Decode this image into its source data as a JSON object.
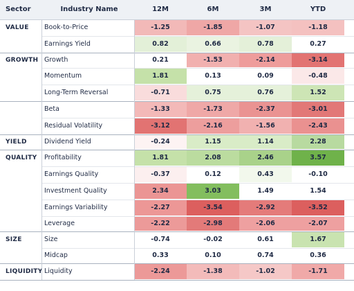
{
  "headers": {
    "sector": "Sector",
    "industry": "Industry Name",
    "cols": [
      "12M",
      "6M",
      "3M",
      "YTD"
    ]
  },
  "rows": [
    {
      "sector": "VALUE",
      "name": "Book-to-Price",
      "values": [
        "-1.25",
        "-1.85",
        "-1.07",
        "-1.18"
      ],
      "colors": [
        "#f2b9b8",
        "#efa7a6",
        "#f4c4c3",
        "#f4c1c0"
      ]
    },
    {
      "sector": "",
      "name": "Earnings Yield",
      "values": [
        "0.82",
        "0.66",
        "0.78",
        "0.27"
      ],
      "colors": [
        "#e3f0d8",
        "#eaf3e1",
        "#e4f0d9",
        "#ffffff"
      ]
    },
    {
      "sector": "GROWTH",
      "name": "Growth",
      "values": [
        "0.21",
        "-1.53",
        "-2.14",
        "-3.14"
      ],
      "colors": [
        "#ffffff",
        "#f1b0af",
        "#ee9c9b",
        "#e27372"
      ]
    },
    {
      "sector": "",
      "name": "Momentum",
      "values": [
        "1.81",
        "0.13",
        "0.09",
        "-0.48"
      ],
      "colors": [
        "#c5e1a9",
        "#ffffff",
        "#ffffff",
        "#fbe8e8"
      ]
    },
    {
      "sector": "",
      "name": "Long-Term Reversal",
      "values": [
        "-0.71",
        "0.75",
        "0.76",
        "1.52"
      ],
      "colors": [
        "#f9dcdc",
        "#e5f1da",
        "#e5f1da",
        "#cde5b5"
      ]
    },
    {
      "sector": "",
      "name": "Beta",
      "values": [
        "-1.33",
        "-1.73",
        "-2.37",
        "-3.01"
      ],
      "colors": [
        "#f3b9b8",
        "#efa8a7",
        "#ea9392",
        "#e27877"
      ]
    },
    {
      "sector": "",
      "name": "Residual Volatility",
      "values": [
        "-3.12",
        "-2.16",
        "-1.56",
        "-2.43"
      ],
      "colors": [
        "#e27372",
        "#ed9e9d",
        "#f1b1b0",
        "#ea9190"
      ]
    },
    {
      "sector": "YIELD",
      "name": "Dividend Yield",
      "values": [
        "-0.24",
        "1.15",
        "1.14",
        "2.28"
      ],
      "colors": [
        "#fdf3f3",
        "#d9ecc7",
        "#d9ecc7",
        "#b8daa0"
      ]
    },
    {
      "sector": "QUALITY",
      "name": "Profitability",
      "values": [
        "1.81",
        "2.08",
        "2.46",
        "3.57"
      ],
      "colors": [
        "#c5e1a9",
        "#bbdc9f",
        "#a9d28a",
        "#6fb24a"
      ]
    },
    {
      "sector": "",
      "name": "Earnings Quality",
      "values": [
        "-0.37",
        "0.12",
        "0.43",
        "-0.10"
      ],
      "colors": [
        "#fcefef",
        "#ffffff",
        "#f2f8ec",
        "#ffffff"
      ]
    },
    {
      "sector": "",
      "name": "Investment Quality",
      "values": [
        "2.34",
        "3.03",
        "1.49",
        "1.54"
      ],
      "colors": [
        "#eb9594",
        "#83be5e",
        "#ffffff",
        "#ffffff"
      ]
    },
    {
      "sector": "",
      "name": "Earnings Variability",
      "values": [
        "-2.27",
        "-3.54",
        "-2.92",
        "-3.52"
      ],
      "colors": [
        "#ec9796",
        "#dc5f5e",
        "#e47b7a",
        "#dc5f5e"
      ]
    },
    {
      "sector": "",
      "name": "Leverage",
      "values": [
        "-2.22",
        "-2.98",
        "-2.06",
        "-2.07"
      ],
      "colors": [
        "#ec9a99",
        "#e37a79",
        "#eea0a0",
        "#eea0a0"
      ]
    },
    {
      "sector": "SIZE",
      "name": "Size",
      "values": [
        "-0.74",
        "-0.02",
        "0.61",
        "1.67"
      ],
      "colors": [
        "#ffffff",
        "#ffffff",
        "#ffffff",
        "#c9e3b0"
      ]
    },
    {
      "sector": "",
      "name": "Midcap",
      "values": [
        "0.33",
        "0.10",
        "0.74",
        "0.36"
      ],
      "colors": [
        "#ffffff",
        "#ffffff",
        "#ffffff",
        "#ffffff"
      ]
    },
    {
      "sector": "LIQUIDITY",
      "name": "Liquidity",
      "values": [
        "-2.24",
        "-1.38",
        "-1.02",
        "-1.71"
      ],
      "colors": [
        "#ec9998",
        "#f3bbba",
        "#f5c8c7",
        "#f0a9a8"
      ]
    }
  ]
}
